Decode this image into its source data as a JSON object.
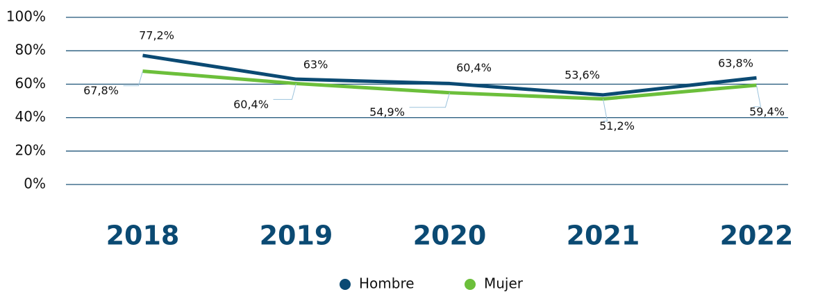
{
  "chart_data": {
    "type": "line",
    "categories": [
      "2018",
      "2019",
      "2020",
      "2021",
      "2022"
    ],
    "series": [
      {
        "name": "Hombre",
        "color": "#0b4a73",
        "values": [
          77.2,
          63,
          60.4,
          53.6,
          63.8
        ],
        "value_labels": [
          "77,2%",
          "63%",
          "60,4%",
          "53,6%",
          "63,8%"
        ]
      },
      {
        "name": "Mujer",
        "color": "#6cbf3b",
        "values": [
          67.8,
          60.4,
          54.9,
          51.2,
          59.4
        ],
        "value_labels": [
          "67,8%",
          "60,4%",
          "54,9%",
          "51,2%",
          "59,4%"
        ]
      }
    ],
    "ylim": [
      0,
      100
    ],
    "yticks": [
      {
        "value": 0,
        "label": "0%"
      },
      {
        "value": 20,
        "label": "20%"
      },
      {
        "value": 40,
        "label": "40%"
      },
      {
        "value": 60,
        "label": "60%"
      },
      {
        "value": 80,
        "label": "80%"
      },
      {
        "value": 100,
        "label": "100%"
      }
    ],
    "grid": true
  }
}
